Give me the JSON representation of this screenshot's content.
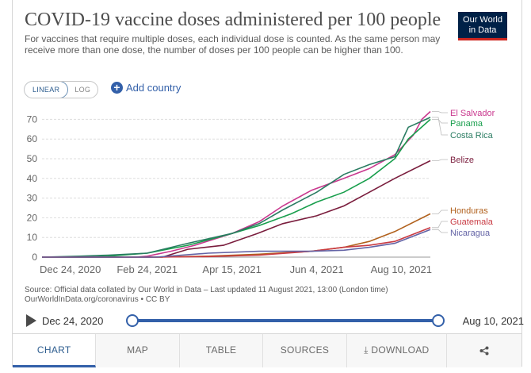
{
  "header": {
    "title": "COVID-19 vaccine doses administered per 100 people",
    "subtitle": "For vaccines that require multiple doses, each individual dose is counted. As the same person may receive more than one dose, the number of doses per 100 people can be higher than 100.",
    "logo_line1": "Our World",
    "logo_line2": "in Data"
  },
  "controls": {
    "linear_label": "LINEAR",
    "log_label": "LOG",
    "add_country_label": "Add country"
  },
  "chart_data": {
    "type": "line",
    "title": "COVID-19 vaccine doses administered per 100 people",
    "xlabel": "",
    "ylabel": "",
    "x_ticks": [
      "Dec 24, 2020",
      "Feb 24, 2021",
      "Apr 15, 2021",
      "Jun 4, 2021",
      "Aug 10, 2021"
    ],
    "y_ticks": [
      0,
      10,
      20,
      30,
      40,
      50,
      60,
      70
    ],
    "ylim": [
      0,
      75
    ],
    "grid": true,
    "legend": "right",
    "series": [
      {
        "name": "El Salvador",
        "color": "#c9388e",
        "x": [
          "2020-12-24",
          "2021-02-17",
          "2021-02-24",
          "2021-03-10",
          "2021-03-24",
          "2021-04-15",
          "2021-05-01",
          "2021-05-15",
          "2021-06-01",
          "2021-06-20",
          "2021-07-05",
          "2021-07-20",
          "2021-07-31",
          "2021-08-05",
          "2021-08-10"
        ],
        "y": [
          0,
          0,
          0.5,
          3,
          6,
          12,
          18,
          26,
          34,
          40,
          45,
          52,
          62,
          70,
          74
        ]
      },
      {
        "name": "Panama",
        "color": "#189e4c",
        "x": [
          "2020-12-24",
          "2021-01-20",
          "2021-02-01",
          "2021-02-24",
          "2021-03-20",
          "2021-04-15",
          "2021-05-01",
          "2021-05-20",
          "2021-06-04",
          "2021-06-20",
          "2021-07-05",
          "2021-07-20",
          "2021-07-28",
          "2021-08-10"
        ],
        "y": [
          0,
          0,
          0.5,
          2,
          6,
          12,
          16,
          22,
          28,
          33,
          40,
          50,
          60,
          70
        ]
      },
      {
        "name": "Costa Rica",
        "color": "#2a7c62",
        "x": [
          "2020-12-24",
          "2021-01-15",
          "2021-02-01",
          "2021-02-24",
          "2021-03-20",
          "2021-04-15",
          "2021-05-01",
          "2021-05-15",
          "2021-06-04",
          "2021-06-20",
          "2021-07-05",
          "2021-07-20",
          "2021-07-28",
          "2021-08-10"
        ],
        "y": [
          0,
          0.5,
          1,
          2,
          7,
          12,
          17,
          24,
          33,
          42,
          47,
          51,
          66,
          71
        ]
      },
      {
        "name": "Belize",
        "color": "#7a1d3d",
        "x": [
          "2020-12-24",
          "2021-03-05",
          "2021-03-20",
          "2021-04-10",
          "2021-04-30",
          "2021-05-15",
          "2021-06-04",
          "2021-06-20",
          "2021-07-05",
          "2021-07-20",
          "2021-08-10"
        ],
        "y": [
          0,
          0,
          4,
          6,
          12,
          17,
          21,
          26,
          33,
          40,
          49
        ]
      },
      {
        "name": "Honduras",
        "color": "#b1611d",
        "x": [
          "2020-12-24",
          "2021-03-01",
          "2021-04-01",
          "2021-05-01",
          "2021-06-01",
          "2021-06-20",
          "2021-07-05",
          "2021-07-20",
          "2021-08-10"
        ],
        "y": [
          0,
          0,
          0.5,
          1.5,
          3,
          5,
          8,
          13,
          22
        ]
      },
      {
        "name": "Guatemala",
        "color": "#c93b43",
        "x": [
          "2020-12-24",
          "2021-03-01",
          "2021-04-01",
          "2021-05-01",
          "2021-06-01",
          "2021-06-20",
          "2021-07-05",
          "2021-07-20",
          "2021-08-10"
        ],
        "y": [
          0,
          0,
          0.3,
          1,
          3,
          5,
          6,
          8,
          15
        ]
      },
      {
        "name": "Nicaragua",
        "color": "#6464a6",
        "x": [
          "2020-12-24",
          "2021-03-01",
          "2021-04-01",
          "2021-05-01",
          "2021-06-01",
          "2021-06-20",
          "2021-07-05",
          "2021-07-20",
          "2021-08-10"
        ],
        "y": [
          0,
          0,
          2,
          3,
          3,
          3.5,
          5,
          7,
          14
        ]
      }
    ]
  },
  "source": {
    "line1": "Source: Official data collated by Our World in Data – Last updated 11 August 2021, 13:00 (London time)",
    "line2": "OurWorldInData.org/coronavirus • CC BY"
  },
  "timeline": {
    "start_label": "Dec 24, 2020",
    "end_label": "Aug 10, 2021"
  },
  "tabs": {
    "chart": "CHART",
    "map": "MAP",
    "table": "TABLE",
    "sources": "SOURCES",
    "download": "DOWNLOAD"
  }
}
